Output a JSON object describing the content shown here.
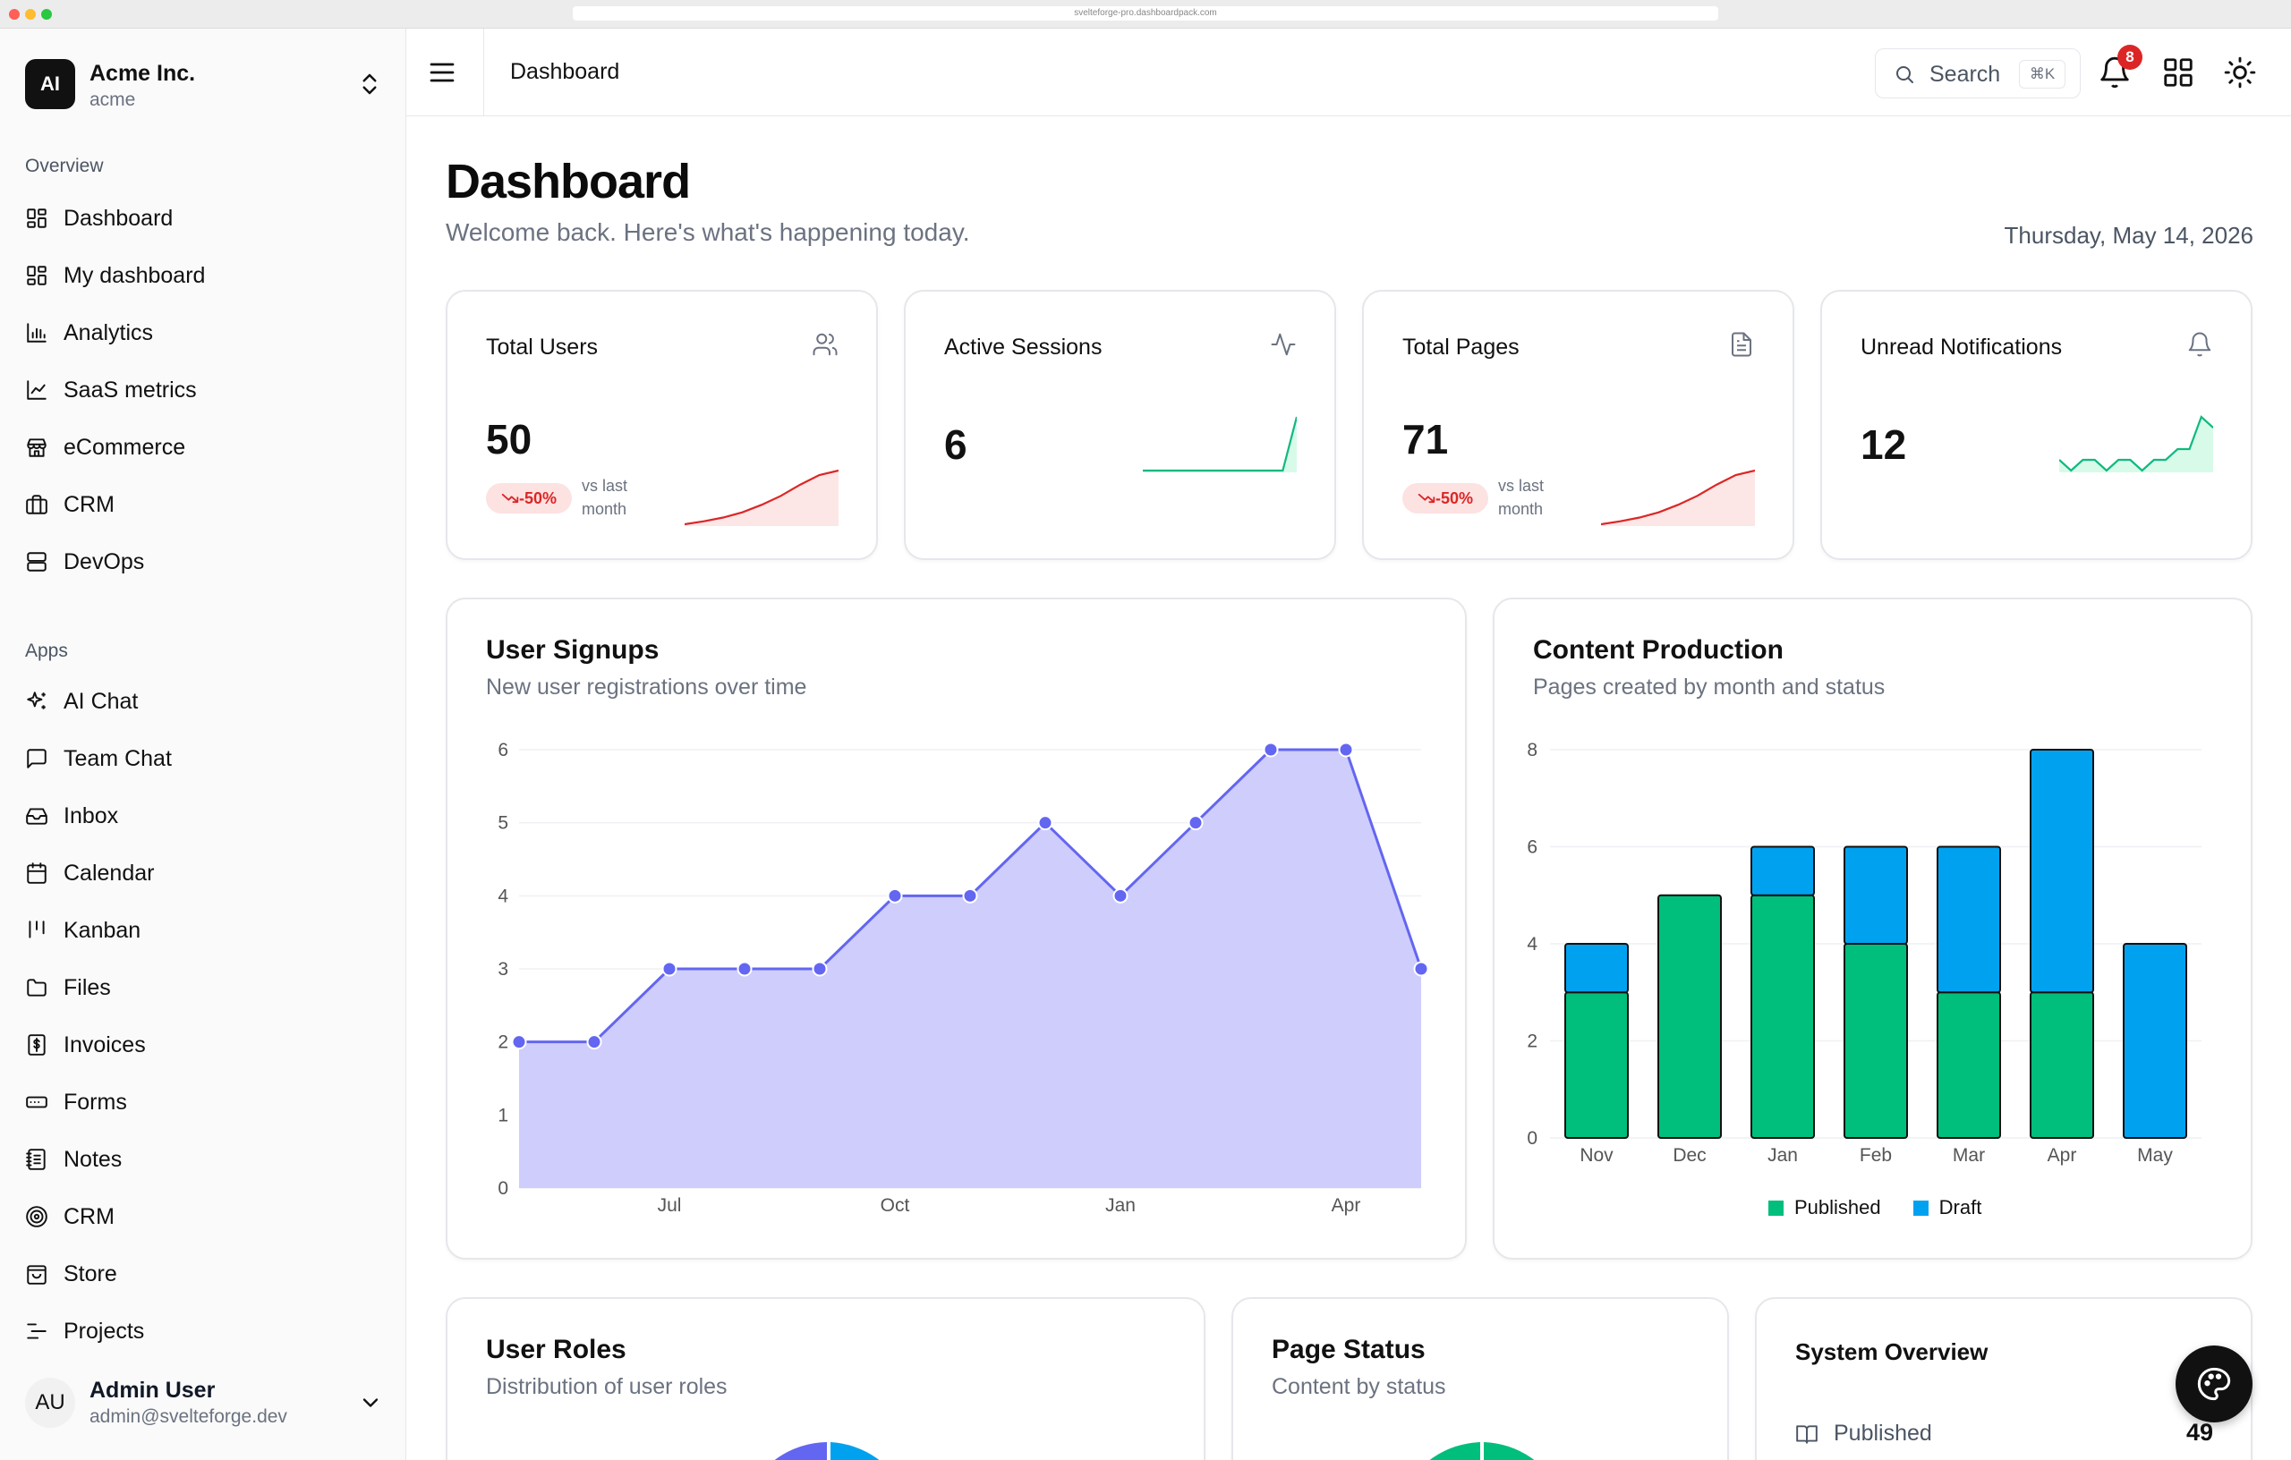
{
  "browser": {
    "url": "svelteforge-pro.dashboardpack.com"
  },
  "org": {
    "initials": "AI",
    "name": "Acme Inc.",
    "slug": "acme"
  },
  "sidebar": {
    "overview_label": "Overview",
    "overview_items": [
      {
        "label": "Dashboard",
        "icon": "dashboard-icon"
      },
      {
        "label": "My dashboard",
        "icon": "dashboard-icon"
      },
      {
        "label": "Analytics",
        "icon": "bar-chart-icon"
      },
      {
        "label": "SaaS metrics",
        "icon": "line-chart-icon"
      },
      {
        "label": "eCommerce",
        "icon": "store-icon"
      },
      {
        "label": "CRM",
        "icon": "briefcase-icon"
      },
      {
        "label": "DevOps",
        "icon": "server-icon"
      }
    ],
    "apps_label": "Apps",
    "app_items": [
      {
        "label": "AI Chat",
        "icon": "sparkles-icon"
      },
      {
        "label": "Team Chat",
        "icon": "message-icon"
      },
      {
        "label": "Inbox",
        "icon": "inbox-icon"
      },
      {
        "label": "Calendar",
        "icon": "calendar-icon"
      },
      {
        "label": "Kanban",
        "icon": "kanban-icon"
      },
      {
        "label": "Files",
        "icon": "folder-icon"
      },
      {
        "label": "Invoices",
        "icon": "invoice-icon"
      },
      {
        "label": "Forms",
        "icon": "form-icon"
      },
      {
        "label": "Notes",
        "icon": "notes-icon"
      },
      {
        "label": "CRM",
        "icon": "target-icon"
      },
      {
        "label": "Store",
        "icon": "shopping-bag-icon"
      },
      {
        "label": "Projects",
        "icon": "projects-icon"
      }
    ]
  },
  "user": {
    "initials": "AU",
    "name": "Admin User",
    "email": "admin@svelteforge.dev"
  },
  "topbar": {
    "breadcrumb": "Dashboard",
    "search_label": "Search",
    "search_shortcut": "⌘K",
    "notification_count": "8"
  },
  "page": {
    "title": "Dashboard",
    "subtitle": "Welcome back. Here's what's happening today.",
    "date": "Thursday, May 14, 2026"
  },
  "stats": [
    {
      "title": "Total Users",
      "value": "50",
      "trend": "-50%",
      "trend_note": "vs last month",
      "icon": "users-icon",
      "spark_color": "#dc2626",
      "spark_fill": "#fde2e2",
      "spark": [
        1,
        1.4,
        1.9,
        2.6,
        3.6,
        4.8,
        6.3,
        7.6,
        8.2
      ]
    },
    {
      "title": "Active Sessions",
      "value": "6",
      "icon": "activity-icon",
      "spark_color": "#10b981",
      "spark_fill": "#d1fae5",
      "spark": [
        0,
        0,
        0,
        0,
        0,
        0,
        0,
        0,
        0,
        0,
        0,
        8
      ]
    },
    {
      "title": "Total Pages",
      "value": "71",
      "trend": "-50%",
      "trend_note": "vs last month",
      "icon": "document-icon",
      "spark_color": "#dc2626",
      "spark_fill": "#fde2e2",
      "spark": [
        1,
        1.4,
        1.9,
        2.6,
        3.6,
        4.8,
        6.3,
        7.6,
        8.2
      ]
    },
    {
      "title": "Unread Notifications",
      "value": "12",
      "icon": "bell-icon",
      "spark_color": "#10b981",
      "spark_fill": "#d1fae5",
      "spark": [
        2,
        1,
        2,
        2,
        1,
        2,
        2,
        1,
        2,
        2,
        3,
        3,
        6,
        5
      ]
    }
  ],
  "signups": {
    "title": "User Signups",
    "subtitle": "New user registrations over time",
    "chart_data": {
      "type": "area",
      "x": [
        "May",
        "Jun",
        "Jul",
        "Aug",
        "Sep",
        "Oct",
        "Nov",
        "Dec",
        "Jan",
        "Feb",
        "Mar",
        "Apr",
        "May"
      ],
      "values": [
        2,
        2,
        3,
        3,
        3,
        4,
        4,
        5,
        4,
        5,
        6,
        6,
        3
      ],
      "tick_labels": [
        {
          "index": 2,
          "label": "Jul"
        },
        {
          "index": 5,
          "label": "Oct"
        },
        {
          "index": 8,
          "label": "Jan"
        },
        {
          "index": 11,
          "label": "Apr"
        }
      ],
      "ylim": [
        0,
        6
      ],
      "yticks": [
        0,
        1,
        2,
        3,
        4,
        5,
        6
      ],
      "line_color": "#6366f1",
      "fill_color": "#cfcdfb"
    }
  },
  "content": {
    "title": "Content Production",
    "subtitle": "Pages created by month and status",
    "chart_data": {
      "type": "bar",
      "stacked": true,
      "categories": [
        "Nov",
        "Dec",
        "Jan",
        "Feb",
        "Mar",
        "Apr",
        "May"
      ],
      "series": [
        {
          "name": "Published",
          "color": "#00be7c",
          "values": [
            3,
            5,
            5,
            4,
            3,
            3,
            0
          ]
        },
        {
          "name": "Draft",
          "color": "#00a2f0",
          "values": [
            1,
            0,
            1,
            2,
            3,
            5,
            4
          ]
        }
      ],
      "ylim": [
        0,
        8
      ],
      "yticks": [
        0,
        2,
        4,
        6,
        8
      ],
      "legend": "bottom"
    }
  },
  "user_roles": {
    "title": "User Roles",
    "subtitle": "Distribution of user roles"
  },
  "page_status": {
    "title": "Page Status",
    "subtitle": "Content by status"
  },
  "system": {
    "title": "System Overview",
    "row_label": "Published",
    "row_value": "49"
  }
}
